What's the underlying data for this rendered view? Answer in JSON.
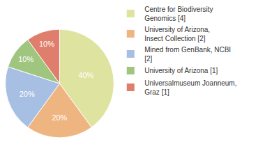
{
  "chart_data": {
    "type": "pie",
    "categories": [
      "Centre for Biodiversity Genomics [4]",
      "University of Arizona, Insect Collection [2]",
      "Mined from GenBank, NCBI [2]",
      "University of Arizona [1]",
      "Universalmuseum Joanneum, Graz [1]"
    ],
    "values": [
      40,
      20,
      20,
      10,
      10
    ],
    "value_labels": [
      "40%",
      "20%",
      "20%",
      "10%",
      "10%"
    ],
    "colors": [
      "#dfe3a0",
      "#efb581",
      "#a6bfe3",
      "#a0c57e",
      "#df7e6c"
    ],
    "data_labels": true,
    "legend": "right"
  }
}
